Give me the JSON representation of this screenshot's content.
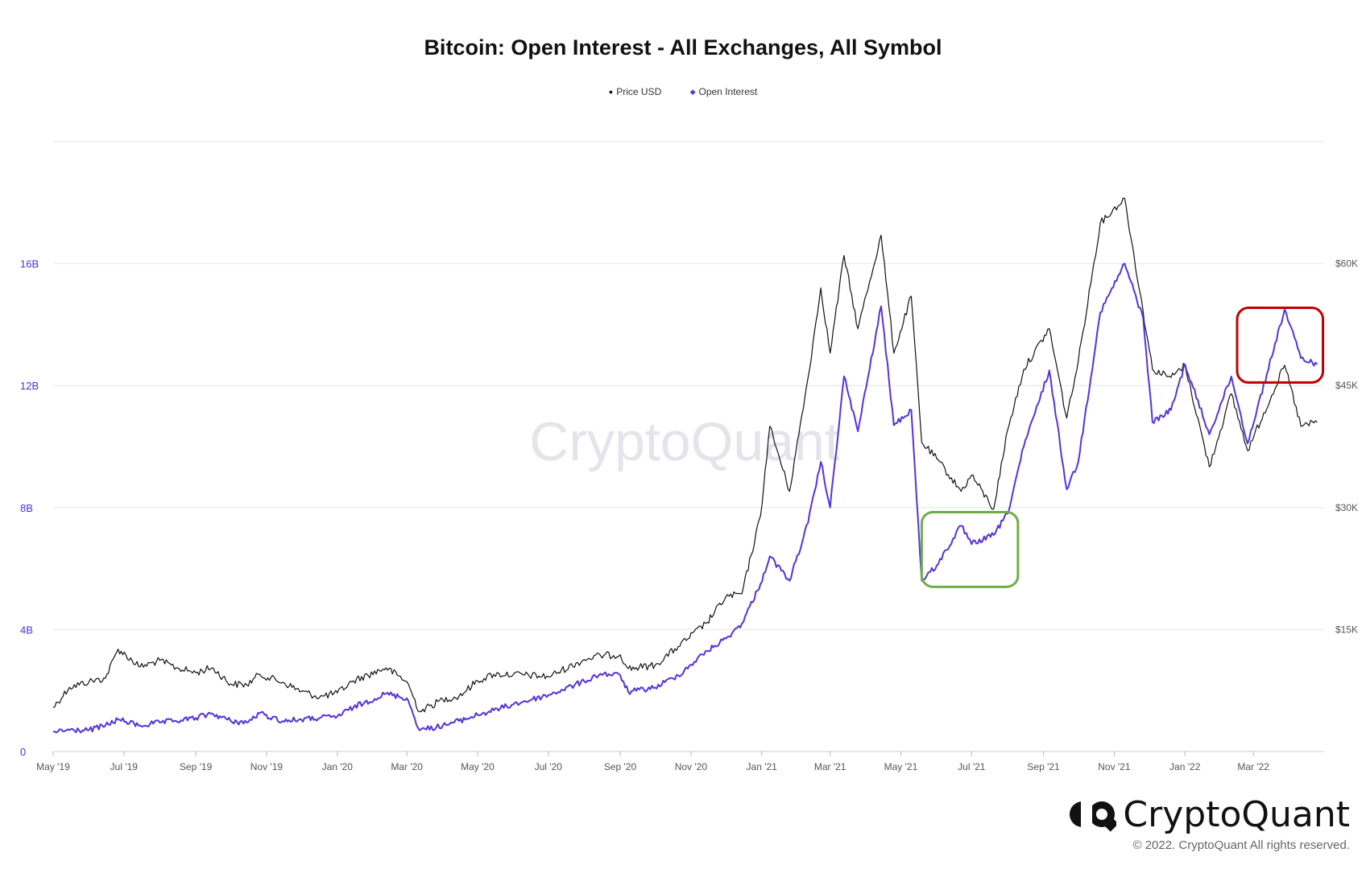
{
  "chart_data": {
    "type": "line",
    "title": "Bitcoin: Open Interest - All Exchanges, All Symbol",
    "watermark": "CryptoQuant",
    "legend": [
      "Price USD",
      "Open Interest"
    ],
    "legend_position": "top-center",
    "x_axis": {
      "range": [
        "2019-05-01",
        "2022-05-01"
      ],
      "tick_labels": [
        "May '19",
        "Jul '19",
        "Sep '19",
        "Nov '19",
        "Jan '20",
        "Mar '20",
        "May '20",
        "Jul '20",
        "Sep '20",
        "Nov '20",
        "Jan '21",
        "Mar '21",
        "May '21",
        "Jul '21",
        "Sep '21",
        "Nov '21",
        "Jan '22",
        "Mar '22"
      ],
      "tick_dates": [
        "2019-05-01",
        "2019-07-01",
        "2019-09-01",
        "2019-11-01",
        "2020-01-01",
        "2020-03-01",
        "2020-05-01",
        "2020-07-01",
        "2020-09-01",
        "2020-11-01",
        "2021-01-01",
        "2021-03-01",
        "2021-05-01",
        "2021-07-01",
        "2021-09-01",
        "2021-11-01",
        "2022-01-01",
        "2022-03-01"
      ]
    },
    "y_axis_left": {
      "series": "Open Interest",
      "range": [
        0,
        20000000000
      ],
      "tick_values": [
        0,
        4000000000,
        8000000000,
        12000000000,
        16000000000
      ],
      "tick_labels": [
        "0",
        "4B",
        "8B",
        "12B",
        "16B"
      ]
    },
    "y_axis_right": {
      "series": "Price USD",
      "range": [
        0,
        75000
      ],
      "tick_values": [
        15000,
        30000,
        45000,
        60000
      ],
      "tick_labels": [
        "$15K",
        "$30K",
        "$45K",
        "$60K"
      ]
    },
    "grid": true,
    "series": [
      {
        "name": "Price USD",
        "axis": "right",
        "color": "#111111",
        "points": [
          [
            "2019-05-01",
            5400
          ],
          [
            "2019-05-15",
            7900
          ],
          [
            "2019-06-01",
            8600
          ],
          [
            "2019-06-15",
            9000
          ],
          [
            "2019-06-26",
            12600
          ],
          [
            "2019-07-15",
            10400
          ],
          [
            "2019-08-01",
            11200
          ],
          [
            "2019-08-15",
            10300
          ],
          [
            "2019-09-01",
            9700
          ],
          [
            "2019-09-15",
            10300
          ],
          [
            "2019-10-01",
            8300
          ],
          [
            "2019-10-15",
            8200
          ],
          [
            "2019-10-26",
            9500
          ],
          [
            "2019-11-15",
            8500
          ],
          [
            "2019-12-01",
            7400
          ],
          [
            "2019-12-17",
            6700
          ],
          [
            "2020-01-01",
            7200
          ],
          [
            "2020-01-15",
            8700
          ],
          [
            "2020-02-12",
            10300
          ],
          [
            "2020-03-01",
            8600
          ],
          [
            "2020-03-12",
            4900
          ],
          [
            "2020-04-01",
            6400
          ],
          [
            "2020-04-15",
            6800
          ],
          [
            "2020-05-01",
            8700
          ],
          [
            "2020-05-15",
            9500
          ],
          [
            "2020-06-01",
            9500
          ],
          [
            "2020-07-01",
            9200
          ],
          [
            "2020-08-01",
            11300
          ],
          [
            "2020-08-15",
            11800
          ],
          [
            "2020-09-01",
            11900
          ],
          [
            "2020-09-08",
            10200
          ],
          [
            "2020-10-01",
            10600
          ],
          [
            "2020-10-21",
            12900
          ],
          [
            "2020-11-15",
            15900
          ],
          [
            "2020-12-01",
            19000
          ],
          [
            "2020-12-15",
            19400
          ],
          [
            "2020-12-31",
            29000
          ],
          [
            "2021-01-08",
            40000
          ],
          [
            "2021-01-25",
            32000
          ],
          [
            "2021-02-10",
            46000
          ],
          [
            "2021-02-21",
            57000
          ],
          [
            "2021-03-01",
            49000
          ],
          [
            "2021-03-13",
            61000
          ],
          [
            "2021-03-25",
            52000
          ],
          [
            "2021-04-14",
            63500
          ],
          [
            "2021-04-25",
            49000
          ],
          [
            "2021-05-10",
            56000
          ],
          [
            "2021-05-19",
            38000
          ],
          [
            "2021-06-01",
            36000
          ],
          [
            "2021-06-22",
            32000
          ],
          [
            "2021-07-01",
            34000
          ],
          [
            "2021-07-20",
            29800
          ],
          [
            "2021-08-01",
            39500
          ],
          [
            "2021-08-15",
            47000
          ],
          [
            "2021-09-06",
            52000
          ],
          [
            "2021-09-21",
            41000
          ],
          [
            "2021-10-01",
            48000
          ],
          [
            "2021-10-20",
            65000
          ],
          [
            "2021-11-10",
            68000
          ],
          [
            "2021-11-26",
            54000
          ],
          [
            "2021-12-04",
            47000
          ],
          [
            "2021-12-20",
            46000
          ],
          [
            "2022-01-01",
            47500
          ],
          [
            "2022-01-22",
            35000
          ],
          [
            "2022-02-10",
            44000
          ],
          [
            "2022-02-24",
            37000
          ],
          [
            "2022-03-28",
            47500
          ],
          [
            "2022-04-11",
            40000
          ],
          [
            "2022-04-25",
            40500
          ]
        ]
      },
      {
        "name": "Open Interest",
        "axis": "left",
        "color": "#5533dd",
        "points": [
          [
            "2019-05-01",
            650000000
          ],
          [
            "2019-05-15",
            700000000
          ],
          [
            "2019-06-01",
            700000000
          ],
          [
            "2019-06-15",
            850000000
          ],
          [
            "2019-06-26",
            1050000000
          ],
          [
            "2019-07-15",
            850000000
          ],
          [
            "2019-08-01",
            950000000
          ],
          [
            "2019-08-15",
            1000000000
          ],
          [
            "2019-09-01",
            1100000000
          ],
          [
            "2019-09-15",
            1250000000
          ],
          [
            "2019-10-01",
            1000000000
          ],
          [
            "2019-10-15",
            950000000
          ],
          [
            "2019-10-26",
            1250000000
          ],
          [
            "2019-11-15",
            1000000000
          ],
          [
            "2019-12-01",
            1050000000
          ],
          [
            "2019-12-17",
            1100000000
          ],
          [
            "2020-01-01",
            1150000000
          ],
          [
            "2020-01-15",
            1450000000
          ],
          [
            "2020-02-12",
            1900000000
          ],
          [
            "2020-03-01",
            1750000000
          ],
          [
            "2020-03-12",
            700000000
          ],
          [
            "2020-04-01",
            850000000
          ],
          [
            "2020-04-15",
            1000000000
          ],
          [
            "2020-05-01",
            1200000000
          ],
          [
            "2020-05-15",
            1350000000
          ],
          [
            "2020-06-01",
            1550000000
          ],
          [
            "2020-07-01",
            1850000000
          ],
          [
            "2020-08-01",
            2300000000
          ],
          [
            "2020-08-15",
            2550000000
          ],
          [
            "2020-09-01",
            2500000000
          ],
          [
            "2020-09-08",
            1950000000
          ],
          [
            "2020-10-01",
            2100000000
          ],
          [
            "2020-10-21",
            2500000000
          ],
          [
            "2020-11-15",
            3300000000
          ],
          [
            "2020-12-01",
            3700000000
          ],
          [
            "2020-12-15",
            4200000000
          ],
          [
            "2020-12-31",
            5500000000
          ],
          [
            "2021-01-08",
            6400000000
          ],
          [
            "2021-01-25",
            5600000000
          ],
          [
            "2021-02-10",
            7500000000
          ],
          [
            "2021-02-21",
            9500000000
          ],
          [
            "2021-03-01",
            8000000000
          ],
          [
            "2021-03-13",
            12300000000
          ],
          [
            "2021-03-25",
            10500000000
          ],
          [
            "2021-04-14",
            14600000000
          ],
          [
            "2021-04-25",
            10700000000
          ],
          [
            "2021-05-10",
            11200000000
          ],
          [
            "2021-05-19",
            5600000000
          ],
          [
            "2021-06-01",
            6100000000
          ],
          [
            "2021-06-22",
            7400000000
          ],
          [
            "2021-07-01",
            6800000000
          ],
          [
            "2021-07-20",
            7100000000
          ],
          [
            "2021-08-01",
            7800000000
          ],
          [
            "2021-08-15",
            10000000000
          ],
          [
            "2021-09-06",
            12500000000
          ],
          [
            "2021-09-21",
            8600000000
          ],
          [
            "2021-10-01",
            9500000000
          ],
          [
            "2021-10-20",
            14400000000
          ],
          [
            "2021-11-10",
            16000000000
          ],
          [
            "2021-11-26",
            14200000000
          ],
          [
            "2021-12-04",
            10800000000
          ],
          [
            "2021-12-20",
            11200000000
          ],
          [
            "2022-01-01",
            12700000000
          ],
          [
            "2022-01-22",
            10400000000
          ],
          [
            "2022-02-10",
            12300000000
          ],
          [
            "2022-02-24",
            10100000000
          ],
          [
            "2022-03-28",
            14500000000
          ],
          [
            "2022-04-11",
            12900000000
          ],
          [
            "2022-04-25",
            12700000000
          ]
        ]
      }
    ],
    "highlight_boxes": [
      {
        "color": "#70ad47",
        "x_range": [
          "2021-05-19",
          "2021-08-10"
        ],
        "y_range_left": [
          5400000000,
          7850000000
        ]
      },
      {
        "color": "#c00000",
        "x_range": [
          "2022-02-15",
          "2022-04-30"
        ],
        "y_range_left": [
          12100000000,
          14550000000
        ]
      }
    ]
  },
  "footer": {
    "brand_name": "CryptoQuant",
    "copyright": "© 2022. CryptoQuant All rights reserved."
  }
}
